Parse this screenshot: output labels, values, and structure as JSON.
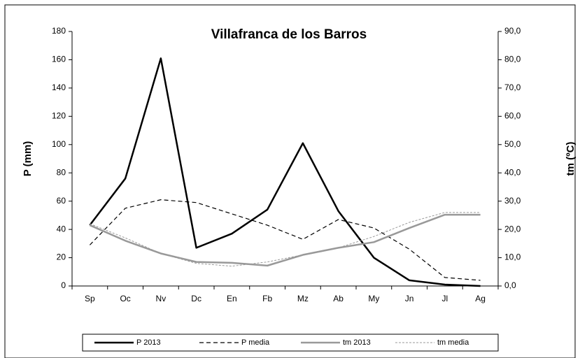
{
  "chart_data": {
    "type": "line",
    "title": "Villafranca de los Barros",
    "categories": [
      "Sp",
      "Oc",
      "Nv",
      "Dc",
      "En",
      "Fb",
      "Mz",
      "Ab",
      "My",
      "Jn",
      "Jl",
      "Ag"
    ],
    "y_label": "P (mm)",
    "y2_label": "tm (ºC)",
    "ylim": [
      0,
      180
    ],
    "yticks": [
      0,
      20,
      40,
      60,
      80,
      100,
      120,
      140,
      160,
      180
    ],
    "y2lim": [
      0,
      90
    ],
    "y2ticks": [
      {
        "value": 0,
        "label": "0,0"
      },
      {
        "value": 10,
        "label": "10,0"
      },
      {
        "value": 20,
        "label": "20,0"
      },
      {
        "value": 30,
        "label": "30,0"
      },
      {
        "value": 40,
        "label": "40,0"
      },
      {
        "value": 50,
        "label": "50,0"
      },
      {
        "value": 60,
        "label": "60,0"
      },
      {
        "value": 70,
        "label": "70,0"
      },
      {
        "value": 80,
        "label": "80,0"
      },
      {
        "value": 90,
        "label": "90,0"
      }
    ],
    "legend": "bottom",
    "series": [
      {
        "name": "P 2013",
        "color": "#000000",
        "dash": "solid",
        "width": 2.5,
        "values": [
          43,
          76,
          161,
          27,
          37,
          54,
          101,
          53,
          20,
          4,
          1,
          0
        ]
      },
      {
        "name": "P media",
        "color": "#000000",
        "dash": "dashed",
        "width": 1.2,
        "values": [
          29,
          55,
          61,
          59,
          51,
          43,
          33,
          47,
          41,
          26,
          6,
          4
        ]
      },
      {
        "name": "tm 2013",
        "color": "#999999",
        "dash": "solid",
        "width": 2.5,
        "axis": "y2",
        "values": [
          21.5,
          16,
          11.5,
          8.5,
          8.2,
          7.2,
          11,
          13.5,
          15.5,
          20.5,
          25.2,
          25.2
        ]
      },
      {
        "name": "tm media",
        "color": "#999999",
        "dash": "dashed",
        "width": 1,
        "axis": "y2",
        "values": [
          22,
          17,
          11.5,
          8,
          7,
          8.5,
          11,
          13.5,
          17.5,
          22.5,
          26,
          26
        ]
      }
    ]
  }
}
